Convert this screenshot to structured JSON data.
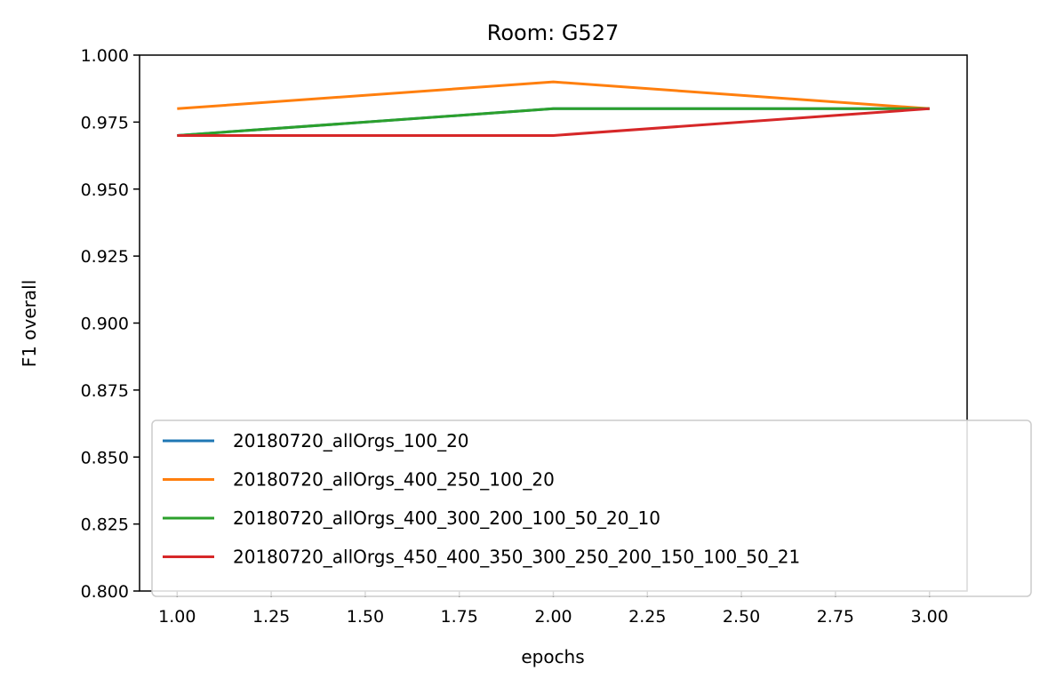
{
  "chart_data": {
    "type": "line",
    "title": "Room: G527",
    "xlabel": "epochs",
    "ylabel": "F1 overall",
    "xlim": [
      0.9,
      3.1
    ],
    "ylim": [
      0.8,
      1.0
    ],
    "xticks": [
      1.0,
      1.25,
      1.5,
      1.75,
      2.0,
      2.25,
      2.5,
      2.75,
      3.0
    ],
    "xtick_labels": [
      "1.00",
      "1.25",
      "1.50",
      "1.75",
      "2.00",
      "2.25",
      "2.50",
      "2.75",
      "3.00"
    ],
    "yticks": [
      0.8,
      0.825,
      0.85,
      0.875,
      0.9,
      0.925,
      0.95,
      0.975,
      1.0
    ],
    "ytick_labels": [
      "0.800",
      "0.825",
      "0.850",
      "0.875",
      "0.900",
      "0.925",
      "0.950",
      "0.975",
      "1.000"
    ],
    "grid": false,
    "legend_position": "lower-left",
    "x": [
      1,
      2,
      3
    ],
    "series": [
      {
        "name": "20180720_allOrgs_100_20",
        "color": "#1f77b4",
        "values": [
          0.97,
          0.98,
          0.98
        ]
      },
      {
        "name": "20180720_allOrgs_400_250_100_20",
        "color": "#ff7f0e",
        "values": [
          0.98,
          0.99,
          0.98
        ]
      },
      {
        "name": "20180720_allOrgs_400_300_200_100_50_20_10",
        "color": "#2ca02c",
        "values": [
          0.97,
          0.98,
          0.98
        ]
      },
      {
        "name": "20180720_allOrgs_450_400_350_300_250_200_150_100_50_21",
        "color": "#d62728",
        "values": [
          0.97,
          0.97,
          0.98
        ]
      }
    ]
  }
}
